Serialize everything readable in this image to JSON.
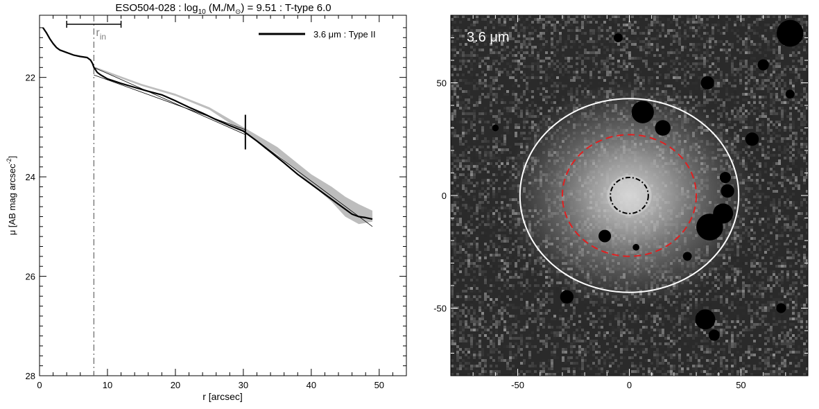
{
  "figure_title": {
    "prefix": "ESO504-028 : log",
    "sub10": "10",
    "mid": " (M",
    "star": "*",
    "slash": "/M",
    "sun": "⊙",
    "suffix": ") = 9.51 : T-type 6.0"
  },
  "chart_data": [
    {
      "type": "line",
      "xlabel": "r [arcsec]",
      "ylabel_main": "μ [AB mag arcsec",
      "ylabel_sup": "-2",
      "ylabel_close": "]",
      "xlim": [
        0,
        54
      ],
      "ylim": [
        28,
        20.75
      ],
      "y_inverted": true,
      "x_ticks": [
        0,
        10,
        20,
        30,
        40,
        50
      ],
      "x_tick_labels": [
        "0",
        "10",
        "20",
        "30",
        "40",
        "50"
      ],
      "y_ticks": [
        22,
        24,
        26,
        28
      ],
      "y_tick_labels": [
        "22",
        "24",
        "26",
        "28"
      ],
      "legend": {
        "label": "3.6 μm : Type II",
        "position": "top-right"
      },
      "r_in": {
        "value": 8.0,
        "bar_range": [
          4,
          12
        ],
        "label": "r",
        "label_sub": "in"
      },
      "break_marker": {
        "x": 30.3,
        "y": 23.1
      },
      "series": [
        {
          "name": "3.6 μm : Type II",
          "color": "#000000",
          "x": [
            0.5,
            1,
            1.5,
            2,
            2.5,
            3,
            4,
            5,
            6,
            7,
            7.5,
            7.8,
            8,
            8.5,
            9,
            10,
            12,
            14,
            16,
            18,
            20,
            22,
            24,
            26,
            28,
            30,
            32,
            34,
            36,
            38,
            40,
            42,
            44,
            46,
            47,
            48,
            49
          ],
          "y": [
            21.0,
            21.1,
            21.22,
            21.32,
            21.4,
            21.45,
            21.5,
            21.55,
            21.58,
            21.6,
            21.65,
            21.72,
            21.8,
            21.9,
            21.95,
            22.03,
            22.12,
            22.2,
            22.28,
            22.35,
            22.47,
            22.6,
            22.72,
            22.85,
            22.97,
            23.08,
            23.28,
            23.5,
            23.72,
            23.95,
            24.15,
            24.35,
            24.55,
            24.75,
            24.8,
            24.82,
            24.85
          ]
        }
      ],
      "fit_lines": [
        {
          "x": [
            8,
            30.3
          ],
          "y": [
            21.95,
            23.05
          ]
        },
        {
          "x": [
            8,
            30.3
          ],
          "y": [
            21.8,
            23.15
          ]
        },
        {
          "x": [
            30.3,
            49
          ],
          "y": [
            23.1,
            25.0
          ]
        }
      ],
      "error_band": {
        "x": [
          8,
          15,
          20,
          25,
          30,
          35,
          40,
          43,
          45,
          47,
          49
        ],
        "y_upper": [
          21.78,
          22.13,
          22.33,
          22.6,
          23.0,
          23.4,
          23.95,
          24.2,
          24.4,
          24.55,
          24.68
        ],
        "y_lower": [
          21.82,
          22.17,
          22.37,
          22.65,
          23.1,
          23.55,
          24.15,
          24.5,
          24.8,
          24.95,
          24.9
        ]
      }
    },
    {
      "type": "heatmap",
      "annotation": "3.6 μm",
      "xlim": [
        -80,
        80
      ],
      "ylim": [
        -80,
        80
      ],
      "x_ticks": [
        -50,
        0,
        50
      ],
      "x_tick_labels": [
        "-50",
        "0",
        "50"
      ],
      "y_ticks": [
        50,
        0,
        -50
      ],
      "y_tick_labels": [
        "50",
        "0",
        "-50"
      ],
      "ellipses": [
        {
          "cx": 0,
          "cy": 0,
          "rx": 49,
          "ry": 43,
          "color": "#ffffff",
          "dash": "solid"
        },
        {
          "cx": 0,
          "cy": 0,
          "rx": 30,
          "ry": 27,
          "color": "#e02020",
          "dash": "dashed"
        },
        {
          "cx": 0,
          "cy": 0,
          "rx": 8.5,
          "ry": 8,
          "color": "#000000",
          "dash": "dashdot"
        }
      ],
      "masks": [
        {
          "x": 6,
          "y": 37,
          "r": 5
        },
        {
          "x": 35,
          "y": 50,
          "r": 3
        },
        {
          "x": 15,
          "y": 30,
          "r": 3.5
        },
        {
          "x": 36,
          "y": -14,
          "r": 6
        },
        {
          "x": 42,
          "y": -8,
          "r": 4.5
        },
        {
          "x": 44,
          "y": 2,
          "r": 3
        },
        {
          "x": 43,
          "y": 8,
          "r": 2.5
        },
        {
          "x": -11,
          "y": -18,
          "r": 2.8
        },
        {
          "x": 3,
          "y": -23,
          "r": 1.5
        },
        {
          "x": 26,
          "y": -27,
          "r": 2
        },
        {
          "x": -28,
          "y": -45,
          "r": 3
        },
        {
          "x": 34,
          "y": -55,
          "r": 4.5
        },
        {
          "x": 38,
          "y": -62,
          "r": 2.5
        },
        {
          "x": 60,
          "y": 58,
          "r": 2.5
        },
        {
          "x": 72,
          "y": 72,
          "r": 6
        },
        {
          "x": 55,
          "y": 25,
          "r": 3
        },
        {
          "x": -5,
          "y": 70,
          "r": 2
        },
        {
          "x": 72,
          "y": 45,
          "r": 2
        },
        {
          "x": 68,
          "y": -50,
          "r": 2.2
        },
        {
          "x": -60,
          "y": 30,
          "r": 1.5
        }
      ]
    }
  ]
}
